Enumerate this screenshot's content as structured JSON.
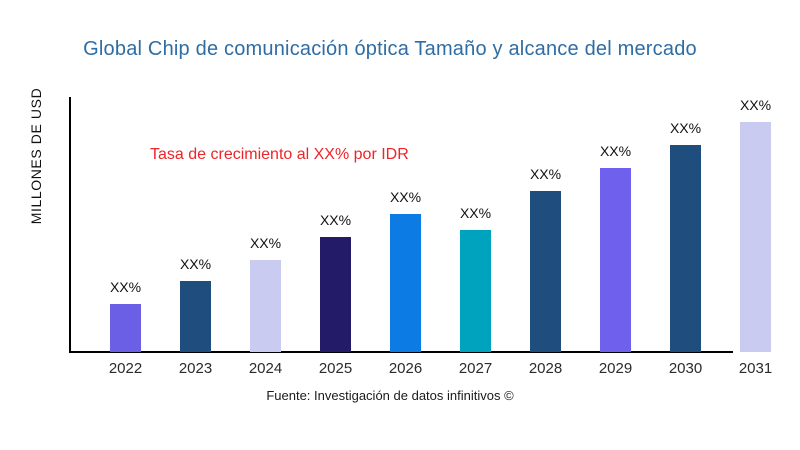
{
  "header": {
    "title": "Global Chip de comunicación óptica Tamaño y alcance del mercado"
  },
  "annotation": {
    "growth_text": "Tasa de crecimiento al XX% por IDR"
  },
  "footer": {
    "source": "Fuente: Investigación de datos infinitivos ©"
  },
  "colors": {
    "title": "#2e6da4",
    "annotation": "#ee2428",
    "axis": "#000000",
    "tick_text": "#2b2b2b",
    "label_text": "#111111"
  },
  "chart_data": {
    "type": "bar",
    "title": "Global Chip de comunicación óptica Tamaño y alcance del mercado",
    "xlabel": "",
    "ylabel": "MILLONES DE USD",
    "categories": [
      "2022",
      "2023",
      "2024",
      "2025",
      "2026",
      "2027",
      "2028",
      "2029",
      "2030",
      "2031"
    ],
    "values": [
      21,
      31,
      40,
      50,
      60,
      53,
      70,
      80,
      90,
      100
    ],
    "ylim": [
      0,
      100
    ],
    "bar_labels": [
      "XX%",
      "XX%",
      "XX%",
      "XX%",
      "XX%",
      "XX%",
      "XX%",
      "XX%",
      "XX%",
      "XX%"
    ],
    "bar_colors": [
      "#6b5fe6",
      "#1e4d7e",
      "#c9cbf0",
      "#241b68",
      "#0d7be4",
      "#00a3bd",
      "#1e4d7e",
      "#6f61ed",
      "#1e4d7e",
      "#c9cbf0"
    ],
    "annotation": "Tasa de crecimiento al XX% por IDR",
    "grid": false,
    "legend": false
  }
}
